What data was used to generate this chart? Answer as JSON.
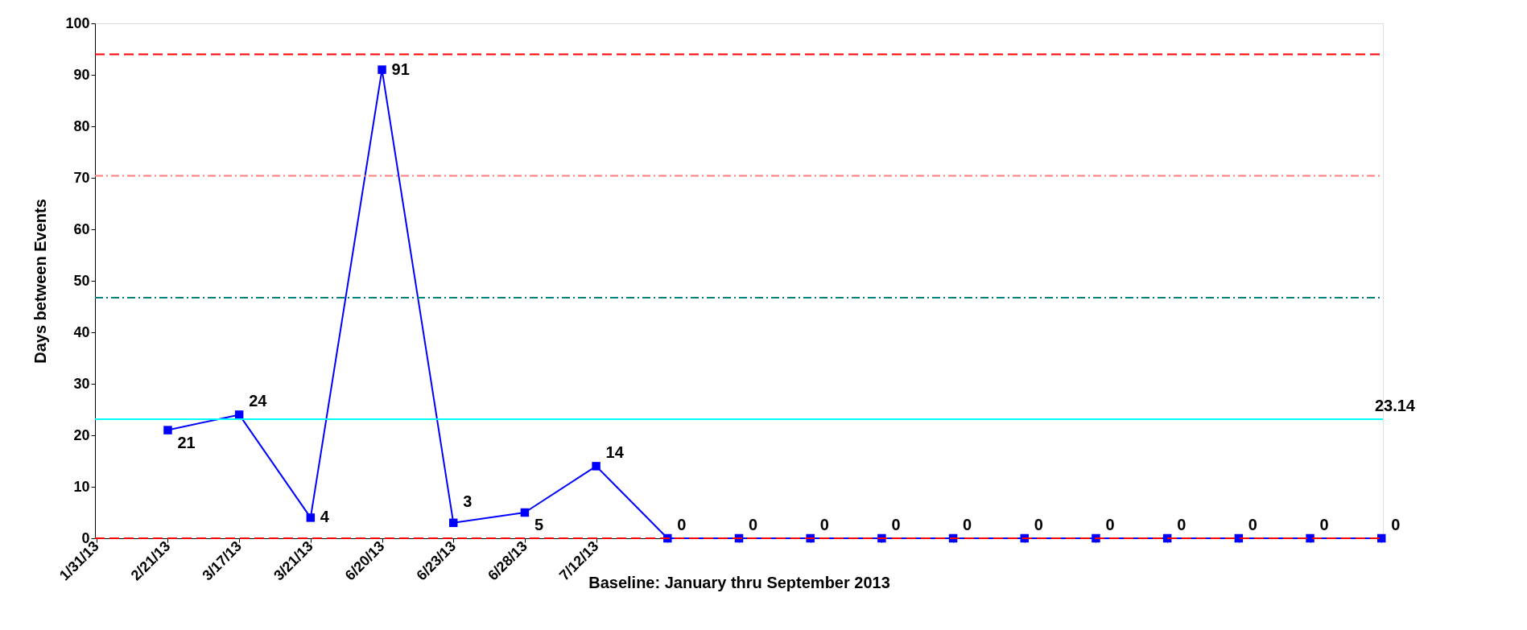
{
  "chart_data": {
    "type": "line",
    "xlabel": "Baseline: January thru September 2013",
    "ylabel": "Days   between Events",
    "categories": [
      "1/31/13",
      "2/21/13",
      "3/17/13",
      "3/21/13",
      "6/20/13",
      "6/23/13",
      "6/28/13",
      "7/12/13",
      null,
      null,
      null,
      null,
      null,
      null,
      null,
      null,
      null,
      null,
      null
    ],
    "series": [
      {
        "color": "#0000ff",
        "values": [
          null,
          21,
          24,
          4,
          91,
          3,
          5,
          14,
          0,
          0,
          0,
          0,
          0,
          0,
          0,
          0,
          0,
          0,
          0
        ]
      }
    ],
    "ylim": [
      0,
      100
    ],
    "yticks": [
      0,
      10,
      20,
      30,
      40,
      50,
      60,
      70,
      80,
      90,
      100
    ],
    "ref_lines": [
      {
        "axis": "y",
        "value": 94,
        "label": null,
        "color": "#ff0000",
        "line_style": "dashed"
      },
      {
        "axis": "y",
        "value": 70.4,
        "label": null,
        "color": "#ff7f7f",
        "line_style": "dashdot"
      },
      {
        "axis": "y",
        "value": 46.7,
        "label": null,
        "color": "#008080",
        "line_style": "dashdot"
      },
      {
        "axis": "y",
        "value": 23.14,
        "label": "23.14",
        "color": "#00ffff",
        "line_style": "solid"
      },
      {
        "axis": "y",
        "value": 0,
        "label": null,
        "color": "#ff0000",
        "line_style": "dashed"
      }
    ],
    "data_labels": true,
    "marker": "square",
    "line_style": "solid",
    "grid": false
  }
}
